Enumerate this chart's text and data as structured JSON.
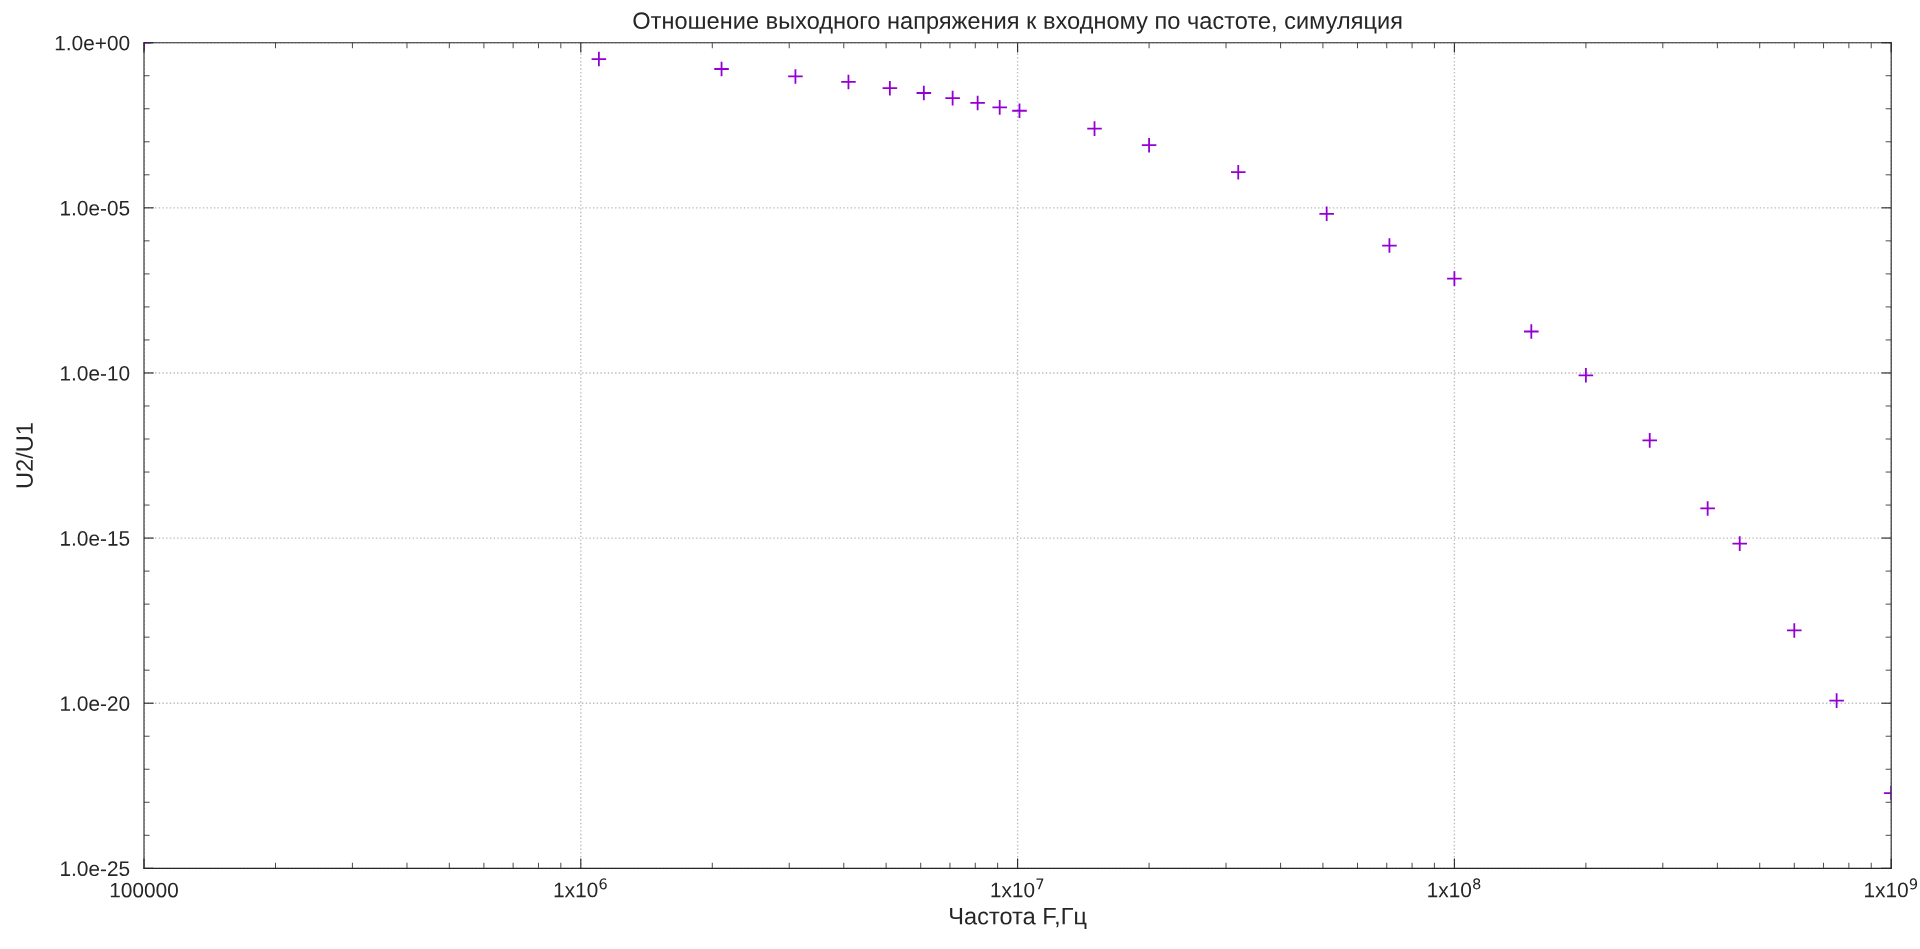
{
  "chart_data": {
    "type": "scatter",
    "title": "Отношение выходного напряжения к входному по частоте, симуляция",
    "xlabel": "Частота F,Гц",
    "ylabel": "U2/U1",
    "log": "xy",
    "grid": true,
    "marker": "cross",
    "xlim": [
      100000,
      1000000000
    ],
    "xticks": [
      100000,
      {
        "value": 1000000,
        "label": "1x10$^{6}$"
      },
      {
        "value": 10000000,
        "label": "1x10$^{7}$"
      },
      {
        "value": 100000000,
        "label": "1x10$^{8}$"
      },
      {
        "value": 1000000000,
        "label": "1x10$^{9}$"
      }
    ],
    "ylim": [
      1e-25,
      1
    ],
    "yticks": [
      {
        "value": 1,
        "label": "1.0e+00"
      },
      {
        "value": 1e-05,
        "label": "1.0e-05"
      },
      {
        "value": 1e-10,
        "label": "1.0e-10"
      },
      {
        "value": 1e-15,
        "label": "1.0e-15"
      },
      {
        "value": 1e-20,
        "label": "1.0e-20"
      },
      {
        "value": 1e-25,
        "label": "1.0e-25"
      }
    ],
    "series": [
      {
        "color": "#9400d3",
        "x": [
          100000,
          1100000,
          2100000,
          3100000,
          4100000,
          5100000,
          6100000,
          7100000,
          8100000,
          9100000,
          10100000,
          15000000,
          20000000,
          32000000,
          51000000,
          71000000,
          100000000,
          150000000,
          200000000,
          280000000,
          380000000,
          450000000,
          600000000,
          750000000,
          1000000000
        ],
        "values": [
          1,
          0.32,
          0.16,
          0.095,
          0.065,
          0.042,
          0.03,
          0.021,
          0.015,
          0.011,
          0.0087,
          0.0025,
          0.00079,
          0.00012,
          6.6e-06,
          7.2e-07,
          7.2e-08,
          1.8e-09,
          8.5e-11,
          9.1e-13,
          7.9e-15,
          6.8e-16,
          1.6e-18,
          1.2e-20,
          1.9e-23
        ]
      }
    ]
  }
}
